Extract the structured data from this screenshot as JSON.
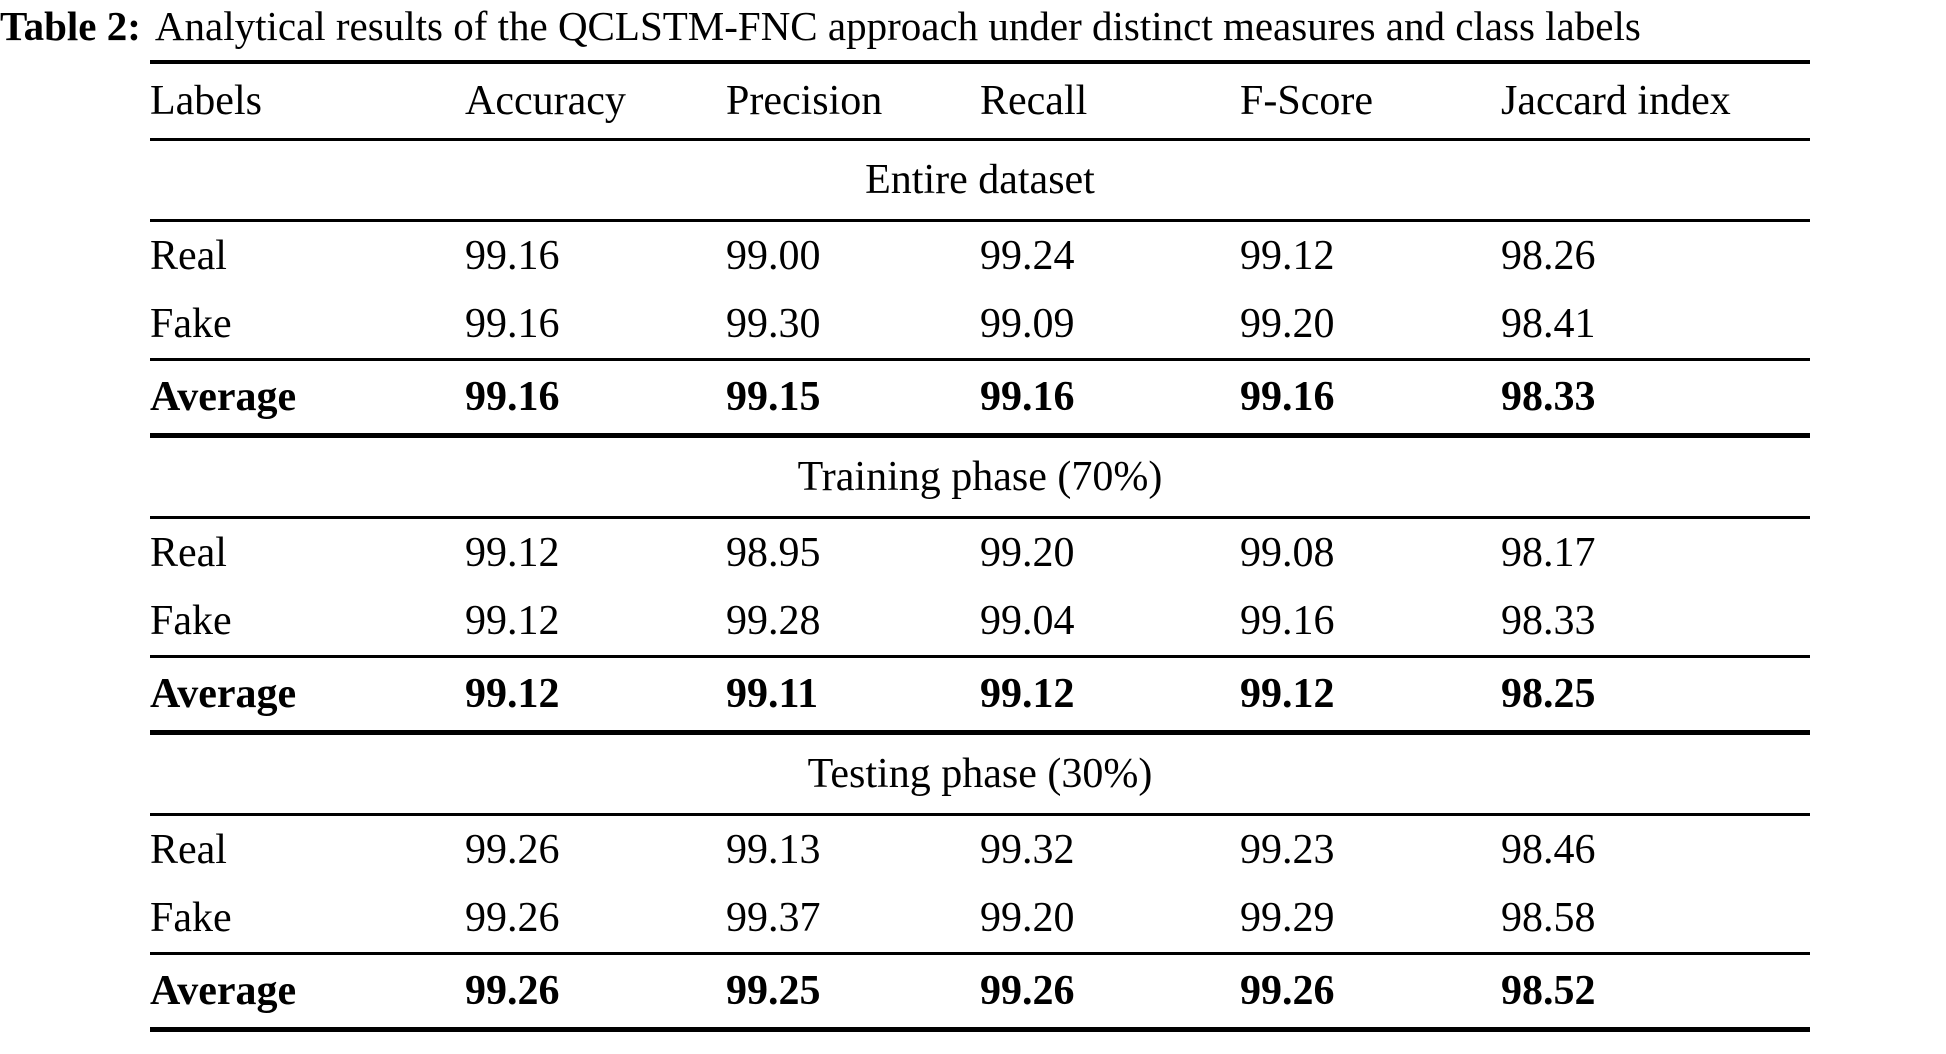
{
  "caption": {
    "label": "Table 2:",
    "text": "Analytical results of the QCLSTM-FNC approach under distinct measures and class labels"
  },
  "columns": [
    "Labels",
    "Accuracy",
    "Precision",
    "Recall",
    "F-Score",
    "Jaccard index"
  ],
  "sections": [
    {
      "title": "Entire dataset",
      "rows": [
        {
          "label": "Real",
          "values": [
            "99.16",
            "99.00",
            "99.24",
            "99.12",
            "98.26"
          ]
        },
        {
          "label": "Fake",
          "values": [
            "99.16",
            "99.30",
            "99.09",
            "99.20",
            "98.41"
          ]
        },
        {
          "label": "Average",
          "values": [
            "99.16",
            "99.15",
            "99.16",
            "99.16",
            "98.33"
          ]
        }
      ]
    },
    {
      "title": "Training phase (70%)",
      "rows": [
        {
          "label": "Real",
          "values": [
            "99.12",
            "98.95",
            "99.20",
            "99.08",
            "98.17"
          ]
        },
        {
          "label": "Fake",
          "values": [
            "99.12",
            "99.28",
            "99.04",
            "99.16",
            "98.33"
          ]
        },
        {
          "label": "Average",
          "values": [
            "99.12",
            "99.11",
            "99.12",
            "99.12",
            "98.25"
          ]
        }
      ]
    },
    {
      "title": "Testing phase (30%)",
      "rows": [
        {
          "label": "Real",
          "values": [
            "99.26",
            "99.13",
            "99.32",
            "99.23",
            "98.46"
          ]
        },
        {
          "label": "Fake",
          "values": [
            "99.26",
            "99.37",
            "99.20",
            "99.29",
            "98.58"
          ]
        },
        {
          "label": "Average",
          "values": [
            "99.26",
            "99.25",
            "99.26",
            "99.26",
            "98.52"
          ]
        }
      ]
    }
  ],
  "colors": {
    "text": "#000000",
    "background": "#ffffff",
    "rule": "#000000"
  }
}
